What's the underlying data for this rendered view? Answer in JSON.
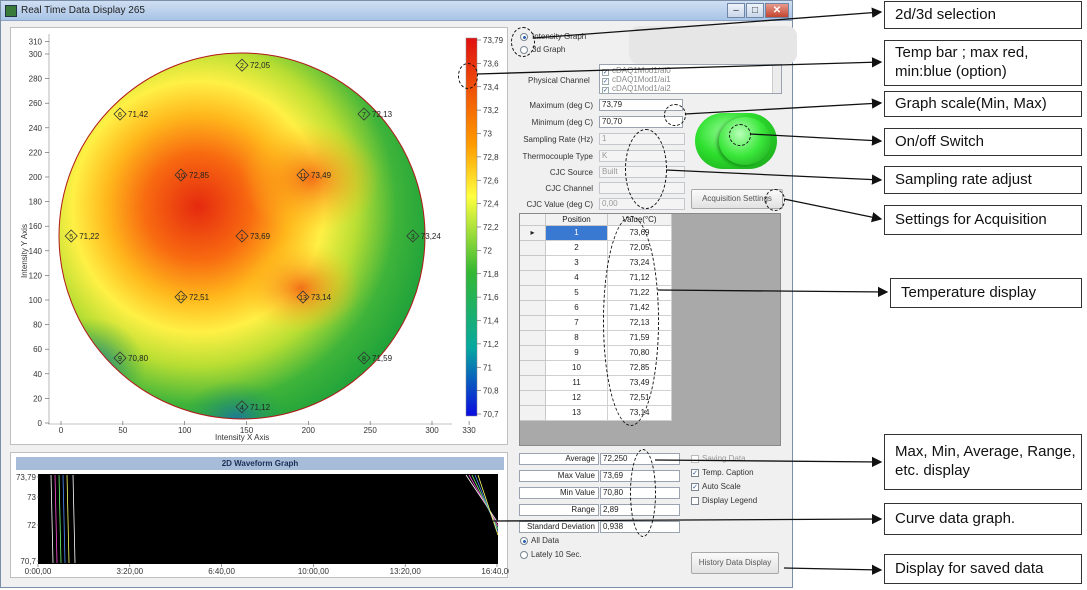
{
  "window": {
    "title": "Real Time Data Display 265",
    "min": "–",
    "max": "□",
    "close": "✕"
  },
  "graph_mode": {
    "intensity_label": "Intensity Graph",
    "g3d_label": "3d Graph",
    "selected": "intensity"
  },
  "heatmap": {
    "x_axis_label": "Intensity X Axis",
    "y_axis_label": "Intensity Y Axis",
    "x_ticks": [
      "0",
      "50",
      "100",
      "150",
      "200",
      "250",
      "300",
      "330"
    ],
    "y_ticks": [
      "0",
      "20",
      "40",
      "60",
      "80",
      "100",
      "120",
      "140",
      "160",
      "180",
      "200",
      "220",
      "240",
      "260",
      "280",
      "300",
      "310"
    ],
    "points": [
      {
        "id": "1",
        "value": "73,69",
        "x": 150,
        "y": 150
      },
      {
        "id": "2",
        "value": "72,05",
        "x": 150,
        "y": 290
      },
      {
        "id": "3",
        "value": "73,24",
        "x": 290,
        "y": 150
      },
      {
        "id": "4",
        "value": "71,12",
        "x": 150,
        "y": 10
      },
      {
        "id": "5",
        "value": "71,22",
        "x": 10,
        "y": 150
      },
      {
        "id": "6",
        "value": "71,42",
        "x": 50,
        "y": 250
      },
      {
        "id": "7",
        "value": "72,13",
        "x": 250,
        "y": 250
      },
      {
        "id": "8",
        "value": "71,59",
        "x": 250,
        "y": 50
      },
      {
        "id": "9",
        "value": "70,80",
        "x": 50,
        "y": 50
      },
      {
        "id": "10",
        "value": "72,85",
        "x": 100,
        "y": 200
      },
      {
        "id": "11",
        "value": "73,49",
        "x": 200,
        "y": 200
      },
      {
        "id": "12",
        "value": "72,51",
        "x": 100,
        "y": 100
      },
      {
        "id": "13",
        "value": "73,14",
        "x": 200,
        "y": 100
      }
    ]
  },
  "colorbar": {
    "ticks": [
      "73,79",
      "73,6",
      "73,4",
      "73,2",
      "73",
      "72,8",
      "72,6",
      "72,4",
      "72,2",
      "72",
      "71,8",
      "71,6",
      "71,4",
      "71,2",
      "71",
      "70,8",
      "70,7"
    ],
    "colors": {
      "max": "#e01010",
      "mid_high": "#ffcc00",
      "mid": "#ffff40",
      "mid_low": "#33b833",
      "min": "#0a0ae0"
    }
  },
  "channels": {
    "label": "Physical Channel",
    "items": [
      "cDAQ1Mod1/ai0",
      "cDAQ1Mod1/ai1",
      "cDAQ1Mod1/ai2"
    ]
  },
  "settings": {
    "max_label": "Maximum (deg C)",
    "max_value": "73,79",
    "min_label": "Minimum (deg C)",
    "min_value": "70,70",
    "rate_label": "Sampling Rate (Hz)",
    "rate_value": "1",
    "tc_label": "Thermocouple Type",
    "tc_value": "K",
    "cjc_source_label": "CJC Source",
    "cjc_source_value": "Built",
    "cjc_channel_label": "CJC Channel",
    "cjc_value_label": "CJC Value (deg C)",
    "cjc_value": "0,00",
    "acq_button": "Acquisition Settings"
  },
  "table": {
    "headers": [
      "Position",
      "Value(°C)"
    ],
    "rows": [
      [
        "1",
        "73,69"
      ],
      [
        "2",
        "72,05"
      ],
      [
        "3",
        "73,24"
      ],
      [
        "4",
        "71,12"
      ],
      [
        "5",
        "71,22"
      ],
      [
        "6",
        "71,42"
      ],
      [
        "7",
        "72,13"
      ],
      [
        "8",
        "71,59"
      ],
      [
        "9",
        "70,80"
      ],
      [
        "10",
        "72,85"
      ],
      [
        "11",
        "73,49"
      ],
      [
        "12",
        "72,51"
      ],
      [
        "13",
        "73,14"
      ]
    ]
  },
  "stats": {
    "average_label": "Average",
    "average": "72,250",
    "max_label": "Max Value",
    "max": "73,69",
    "min_label": "Min Value",
    "min": "70,80",
    "range_label": "Range",
    "range": "2,89",
    "std_label": "Standard Deviation",
    "std": "0,938"
  },
  "options": {
    "saving": "Saving Data",
    "caption": "Temp. Caption",
    "autoscale": "Auto Scale",
    "legend": "Display Legend",
    "saving_on": false,
    "caption_on": true,
    "autoscale_on": true,
    "legend_on": false
  },
  "data_range": {
    "all": "All Data",
    "lately": "Lately 10 Sec.",
    "selected": "all"
  },
  "history_button": "History Data Display",
  "waveform": {
    "title": "2D Waveform Graph",
    "y_ticks": [
      "73,79",
      "73",
      "72",
      "70,7"
    ],
    "x_ticks": [
      "0:00,00",
      "3:20,00",
      "6:40,00",
      "10:00,00",
      "13:20,00",
      "16:40,00"
    ],
    "colors": {
      "background": "#000000",
      "traces": [
        "#ffffff",
        "#ff4fd8",
        "#6fff6f",
        "#4f8fff",
        "#ffff66"
      ]
    }
  },
  "switch": {
    "color": "#2ee02e"
  },
  "callouts": [
    "2d/3d selection",
    "Temp bar ; max red, min:blue (option)",
    "Graph scale(Min, Max)",
    "On/off Switch",
    "Sampling rate adjust",
    "Settings for Acquisition",
    "Temperature display",
    "Max, Min, Average, Range, etc. display",
    "Curve data graph.",
    "Display for saved data"
  ]
}
